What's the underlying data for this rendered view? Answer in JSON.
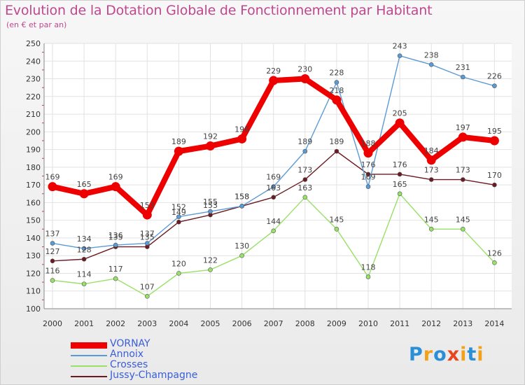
{
  "chart_data": {
    "type": "line",
    "title": "Evolution de la Dotation Globale de Fonctionnement par Habitant",
    "subtitle": "(en € et par an)",
    "x": [
      "2000",
      "2001",
      "2002",
      "2003",
      "2004",
      "2005",
      "2006",
      "2007",
      "2008",
      "2009",
      "2010",
      "2011",
      "2012",
      "2013",
      "2014"
    ],
    "ylim": [
      100,
      250
    ],
    "yticks": [
      100,
      110,
      120,
      130,
      140,
      150,
      160,
      170,
      180,
      190,
      200,
      210,
      220,
      230,
      240,
      250
    ],
    "grid": true,
    "legend_position": "bottom-left",
    "series": [
      {
        "name": "VORNAY",
        "color": "#ee0000",
        "values": [
          169,
          165,
          169,
          153,
          189,
          192,
          196,
          229,
          230,
          218,
          188,
          205,
          184,
          197,
          195
        ]
      },
      {
        "name": "Annoix",
        "color": "#5b9bd5",
        "values": [
          137,
          134,
          136,
          137,
          152,
          155,
          158,
          169,
          189,
          228,
          169,
          243,
          238,
          231,
          226
        ]
      },
      {
        "name": "Crosses",
        "color": "#99e066",
        "values": [
          116,
          114,
          117,
          107,
          120,
          122,
          130,
          144,
          163,
          145,
          118,
          165,
          145,
          145,
          126
        ]
      },
      {
        "name": "Jussy-Champagne",
        "color": "#6b1a22",
        "values": [
          127,
          128,
          135,
          135,
          149,
          153,
          158,
          163,
          173,
          189,
          176,
          176,
          173,
          173,
          170
        ]
      }
    ]
  },
  "logo": {
    "letters": [
      "P",
      "r",
      "o",
      "x",
      "i",
      "t",
      "i"
    ],
    "colors": [
      "#2a8fd6",
      "#f2a11b",
      "#2a8fd6",
      "#e8451e",
      "#f2a11b",
      "#2a8fd6",
      "#f2a11b"
    ]
  }
}
